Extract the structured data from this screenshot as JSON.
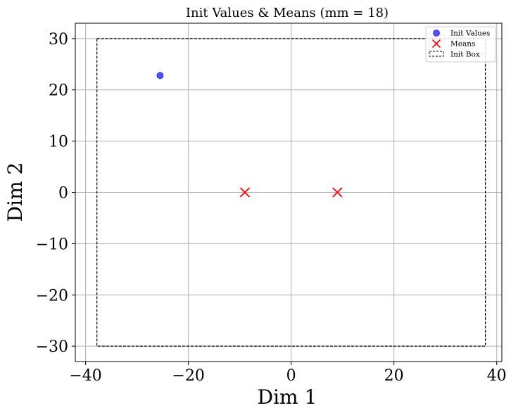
{
  "chart_data": {
    "type": "scatter",
    "title": "Init Values & Means (mm = 18)",
    "xlabel": "Dim 1",
    "ylabel": "Dim 2",
    "xlim": [
      -42,
      41
    ],
    "ylim": [
      -33,
      33
    ],
    "xticks": [
      -40,
      -20,
      0,
      20,
      40
    ],
    "yticks": [
      -30,
      -20,
      -10,
      0,
      10,
      20,
      30
    ],
    "xtick_labels": [
      "−40",
      "−20",
      "0",
      "20",
      "40"
    ],
    "ytick_labels": [
      "−30",
      "−20",
      "−10",
      "0",
      "10",
      "20",
      "30"
    ],
    "grid": true,
    "legend_position": "top-right",
    "series": [
      {
        "name": "Init Values",
        "kind": "points",
        "marker": "circle",
        "color": "#3333ff",
        "points": [
          [
            -25.5,
            22.8
          ]
        ]
      },
      {
        "name": "Means",
        "kind": "points",
        "marker": "x",
        "color": "#ff0000",
        "points": [
          [
            -9,
            0
          ],
          [
            9,
            0
          ]
        ]
      },
      {
        "name": "Init Box",
        "kind": "rect",
        "style": "dashed",
        "color": "#000000",
        "x_range": [
          -37.8,
          37.8
        ],
        "y_range": [
          -30,
          30
        ]
      }
    ]
  }
}
